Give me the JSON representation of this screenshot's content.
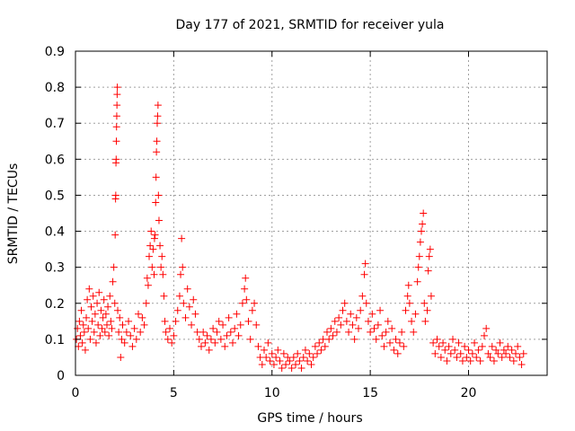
{
  "chart_data": {
    "type": "scatter",
    "title": "Day 177 of 2021, SRMTID for receiver yula",
    "xlabel": "GPS time / hours",
    "ylabel": "SRMTID / TECUs",
    "xlim": [
      0,
      24
    ],
    "ylim": [
      0,
      0.9
    ],
    "xticks": [
      0,
      5,
      10,
      15,
      20
    ],
    "xtick_labels": [
      "0",
      "5",
      "10",
      "15",
      "20"
    ],
    "yticks": [
      0,
      0.1,
      0.2,
      0.3,
      0.4,
      0.5,
      0.6,
      0.7,
      0.8,
      0.9
    ],
    "ytick_labels": [
      "0",
      "0.1",
      "0.2",
      "0.3",
      "0.4",
      "0.5",
      "0.6",
      "0.7",
      "0.8",
      "0.9"
    ],
    "grid": true,
    "marker": "+",
    "series": [
      {
        "name": "SRMTID",
        "color": "#ff0000",
        "points": [
          [
            0.05,
            0.1
          ],
          [
            0.1,
            0.13
          ],
          [
            0.15,
            0.08
          ],
          [
            0.2,
            0.15
          ],
          [
            0.25,
            0.11
          ],
          [
            0.3,
            0.18
          ],
          [
            0.35,
            0.09
          ],
          [
            0.4,
            0.14
          ],
          [
            0.45,
            0.12
          ],
          [
            0.5,
            0.07
          ],
          [
            0.55,
            0.16
          ],
          [
            0.6,
            0.21
          ],
          [
            0.65,
            0.13
          ],
          [
            0.7,
            0.24
          ],
          [
            0.75,
            0.1
          ],
          [
            0.8,
            0.19
          ],
          [
            0.85,
            0.15
          ],
          [
            0.9,
            0.22
          ],
          [
            0.95,
            0.12
          ],
          [
            1.0,
            0.17
          ],
          [
            1.05,
            0.09
          ],
          [
            1.1,
            0.2
          ],
          [
            1.15,
            0.14
          ],
          [
            1.2,
            0.23
          ],
          [
            1.25,
            0.11
          ],
          [
            1.3,
            0.18
          ],
          [
            1.35,
            0.13
          ],
          [
            1.4,
            0.16
          ],
          [
            1.45,
            0.21
          ],
          [
            1.5,
            0.12
          ],
          [
            1.55,
            0.17
          ],
          [
            1.6,
            0.14
          ],
          [
            1.65,
            0.19
          ],
          [
            1.7,
            0.11
          ],
          [
            1.75,
            0.22
          ],
          [
            1.8,
            0.15
          ],
          [
            1.85,
            0.13
          ],
          [
            1.9,
            0.26
          ],
          [
            1.95,
            0.3
          ],
          [
            2.0,
            0.2
          ],
          [
            2.02,
            0.39
          ],
          [
            2.04,
            0.49
          ],
          [
            2.05,
            0.5
          ],
          [
            2.06,
            0.59
          ],
          [
            2.07,
            0.6
          ],
          [
            2.08,
            0.65
          ],
          [
            2.09,
            0.69
          ],
          [
            2.1,
            0.72
          ],
          [
            2.11,
            0.75
          ],
          [
            2.12,
            0.78
          ],
          [
            2.13,
            0.8
          ],
          [
            2.15,
            0.18
          ],
          [
            2.2,
            0.12
          ],
          [
            2.25,
            0.16
          ],
          [
            2.3,
            0.05
          ],
          [
            2.35,
            0.1
          ],
          [
            2.4,
            0.14
          ],
          [
            2.5,
            0.09
          ],
          [
            2.6,
            0.12
          ],
          [
            2.7,
            0.15
          ],
          [
            2.8,
            0.11
          ],
          [
            2.9,
            0.08
          ],
          [
            3.0,
            0.13
          ],
          [
            3.1,
            0.1
          ],
          [
            3.2,
            0.17
          ],
          [
            3.3,
            0.12
          ],
          [
            3.4,
            0.16
          ],
          [
            3.5,
            0.14
          ],
          [
            3.6,
            0.2
          ],
          [
            3.65,
            0.27
          ],
          [
            3.7,
            0.25
          ],
          [
            3.75,
            0.33
          ],
          [
            3.8,
            0.36
          ],
          [
            3.85,
            0.4
          ],
          [
            3.9,
            0.3
          ],
          [
            3.95,
            0.35
          ],
          [
            4.0,
            0.28
          ],
          [
            4.02,
            0.38
          ],
          [
            4.05,
            0.39
          ],
          [
            4.08,
            0.48
          ],
          [
            4.1,
            0.55
          ],
          [
            4.12,
            0.62
          ],
          [
            4.14,
            0.65
          ],
          [
            4.16,
            0.7
          ],
          [
            4.18,
            0.72
          ],
          [
            4.2,
            0.75
          ],
          [
            4.22,
            0.5
          ],
          [
            4.25,
            0.43
          ],
          [
            4.3,
            0.36
          ],
          [
            4.35,
            0.3
          ],
          [
            4.4,
            0.33
          ],
          [
            4.45,
            0.28
          ],
          [
            4.5,
            0.22
          ],
          [
            4.55,
            0.15
          ],
          [
            4.6,
            0.12
          ],
          [
            4.7,
            0.1
          ],
          [
            4.8,
            0.13
          ],
          [
            4.9,
            0.09
          ],
          [
            5.0,
            0.11
          ],
          [
            5.1,
            0.15
          ],
          [
            5.2,
            0.18
          ],
          [
            5.3,
            0.22
          ],
          [
            5.35,
            0.28
          ],
          [
            5.4,
            0.38
          ],
          [
            5.45,
            0.3
          ],
          [
            5.5,
            0.2
          ],
          [
            5.6,
            0.16
          ],
          [
            5.7,
            0.24
          ],
          [
            5.8,
            0.19
          ],
          [
            5.9,
            0.14
          ],
          [
            6.0,
            0.21
          ],
          [
            6.1,
            0.17
          ],
          [
            6.2,
            0.12
          ],
          [
            6.3,
            0.1
          ],
          [
            6.4,
            0.08
          ],
          [
            6.5,
            0.12
          ],
          [
            6.6,
            0.09
          ],
          [
            6.7,
            0.11
          ],
          [
            6.8,
            0.07
          ],
          [
            6.9,
            0.1
          ],
          [
            7.0,
            0.13
          ],
          [
            7.1,
            0.09
          ],
          [
            7.2,
            0.12
          ],
          [
            7.3,
            0.15
          ],
          [
            7.4,
            0.1
          ],
          [
            7.5,
            0.14
          ],
          [
            7.6,
            0.08
          ],
          [
            7.7,
            0.11
          ],
          [
            7.8,
            0.16
          ],
          [
            7.9,
            0.12
          ],
          [
            8.0,
            0.09
          ],
          [
            8.1,
            0.13
          ],
          [
            8.2,
            0.17
          ],
          [
            8.3,
            0.11
          ],
          [
            8.4,
            0.14
          ],
          [
            8.5,
            0.2
          ],
          [
            8.6,
            0.24
          ],
          [
            8.65,
            0.27
          ],
          [
            8.7,
            0.21
          ],
          [
            8.8,
            0.15
          ],
          [
            8.9,
            0.1
          ],
          [
            9.0,
            0.18
          ],
          [
            9.1,
            0.2
          ],
          [
            9.2,
            0.14
          ],
          [
            9.3,
            0.08
          ],
          [
            9.4,
            0.05
          ],
          [
            9.5,
            0.03
          ],
          [
            9.6,
            0.07
          ],
          [
            9.7,
            0.05
          ],
          [
            9.8,
            0.09
          ],
          [
            9.9,
            0.04
          ],
          [
            10.0,
            0.06
          ],
          [
            10.1,
            0.03
          ],
          [
            10.2,
            0.05
          ],
          [
            10.3,
            0.07
          ],
          [
            10.4,
            0.04
          ],
          [
            10.5,
            0.02
          ],
          [
            10.6,
            0.06
          ],
          [
            10.7,
            0.03
          ],
          [
            10.8,
            0.05
          ],
          [
            10.9,
            0.04
          ],
          [
            11.0,
            0.02
          ],
          [
            11.1,
            0.05
          ],
          [
            11.2,
            0.03
          ],
          [
            11.3,
            0.06
          ],
          [
            11.4,
            0.04
          ],
          [
            11.5,
            0.02
          ],
          [
            11.6,
            0.05
          ],
          [
            11.7,
            0.07
          ],
          [
            11.8,
            0.04
          ],
          [
            11.9,
            0.06
          ],
          [
            12.0,
            0.03
          ],
          [
            12.1,
            0.05
          ],
          [
            12.2,
            0.08
          ],
          [
            12.3,
            0.06
          ],
          [
            12.4,
            0.09
          ],
          [
            12.5,
            0.07
          ],
          [
            12.6,
            0.1
          ],
          [
            12.7,
            0.08
          ],
          [
            12.8,
            0.12
          ],
          [
            12.9,
            0.1
          ],
          [
            13.0,
            0.13
          ],
          [
            13.1,
            0.11
          ],
          [
            13.2,
            0.15
          ],
          [
            13.3,
            0.12
          ],
          [
            13.4,
            0.16
          ],
          [
            13.5,
            0.14
          ],
          [
            13.6,
            0.18
          ],
          [
            13.7,
            0.2
          ],
          [
            13.8,
            0.15
          ],
          [
            13.9,
            0.12
          ],
          [
            14.0,
            0.17
          ],
          [
            14.1,
            0.14
          ],
          [
            14.2,
            0.1
          ],
          [
            14.3,
            0.16
          ],
          [
            14.4,
            0.13
          ],
          [
            14.5,
            0.18
          ],
          [
            14.6,
            0.22
          ],
          [
            14.7,
            0.28
          ],
          [
            14.75,
            0.31
          ],
          [
            14.8,
            0.2
          ],
          [
            14.9,
            0.15
          ],
          [
            15.0,
            0.12
          ],
          [
            15.1,
            0.17
          ],
          [
            15.2,
            0.13
          ],
          [
            15.3,
            0.1
          ],
          [
            15.4,
            0.14
          ],
          [
            15.5,
            0.18
          ],
          [
            15.6,
            0.11
          ],
          [
            15.7,
            0.08
          ],
          [
            15.8,
            0.12
          ],
          [
            15.9,
            0.15
          ],
          [
            16.0,
            0.09
          ],
          [
            16.1,
            0.13
          ],
          [
            16.2,
            0.07
          ],
          [
            16.3,
            0.1
          ],
          [
            16.4,
            0.06
          ],
          [
            16.5,
            0.09
          ],
          [
            16.6,
            0.12
          ],
          [
            16.7,
            0.08
          ],
          [
            16.8,
            0.18
          ],
          [
            16.9,
            0.22
          ],
          [
            16.95,
            0.25
          ],
          [
            17.0,
            0.2
          ],
          [
            17.1,
            0.15
          ],
          [
            17.2,
            0.12
          ],
          [
            17.3,
            0.17
          ],
          [
            17.4,
            0.26
          ],
          [
            17.45,
            0.3
          ],
          [
            17.5,
            0.33
          ],
          [
            17.55,
            0.37
          ],
          [
            17.6,
            0.4
          ],
          [
            17.65,
            0.42
          ],
          [
            17.7,
            0.45
          ],
          [
            17.75,
            0.2
          ],
          [
            17.8,
            0.15
          ],
          [
            17.9,
            0.18
          ],
          [
            17.95,
            0.29
          ],
          [
            18.0,
            0.33
          ],
          [
            18.05,
            0.35
          ],
          [
            18.1,
            0.22
          ],
          [
            18.2,
            0.09
          ],
          [
            18.3,
            0.06
          ],
          [
            18.4,
            0.1
          ],
          [
            18.5,
            0.08
          ],
          [
            18.6,
            0.05
          ],
          [
            18.7,
            0.09
          ],
          [
            18.8,
            0.07
          ],
          [
            18.9,
            0.04
          ],
          [
            19.0,
            0.08
          ],
          [
            19.1,
            0.06
          ],
          [
            19.2,
            0.1
          ],
          [
            19.3,
            0.07
          ],
          [
            19.4,
            0.05
          ],
          [
            19.5,
            0.09
          ],
          [
            19.6,
            0.06
          ],
          [
            19.7,
            0.04
          ],
          [
            19.8,
            0.08
          ],
          [
            19.9,
            0.05
          ],
          [
            20.0,
            0.07
          ],
          [
            20.1,
            0.04
          ],
          [
            20.2,
            0.06
          ],
          [
            20.3,
            0.09
          ],
          [
            20.4,
            0.05
          ],
          [
            20.5,
            0.07
          ],
          [
            20.6,
            0.04
          ],
          [
            20.7,
            0.08
          ],
          [
            20.8,
            0.11
          ],
          [
            20.9,
            0.13
          ],
          [
            21.0,
            0.06
          ],
          [
            21.1,
            0.05
          ],
          [
            21.2,
            0.08
          ],
          [
            21.3,
            0.04
          ],
          [
            21.4,
            0.07
          ],
          [
            21.5,
            0.06
          ],
          [
            21.6,
            0.09
          ],
          [
            21.7,
            0.05
          ],
          [
            21.8,
            0.07
          ],
          [
            21.9,
            0.06
          ],
          [
            22.0,
            0.08
          ],
          [
            22.1,
            0.05
          ],
          [
            22.2,
            0.07
          ],
          [
            22.3,
            0.04
          ],
          [
            22.4,
            0.06
          ],
          [
            22.5,
            0.08
          ],
          [
            22.6,
            0.05
          ],
          [
            22.7,
            0.03
          ],
          [
            22.8,
            0.06
          ]
        ]
      }
    ]
  }
}
